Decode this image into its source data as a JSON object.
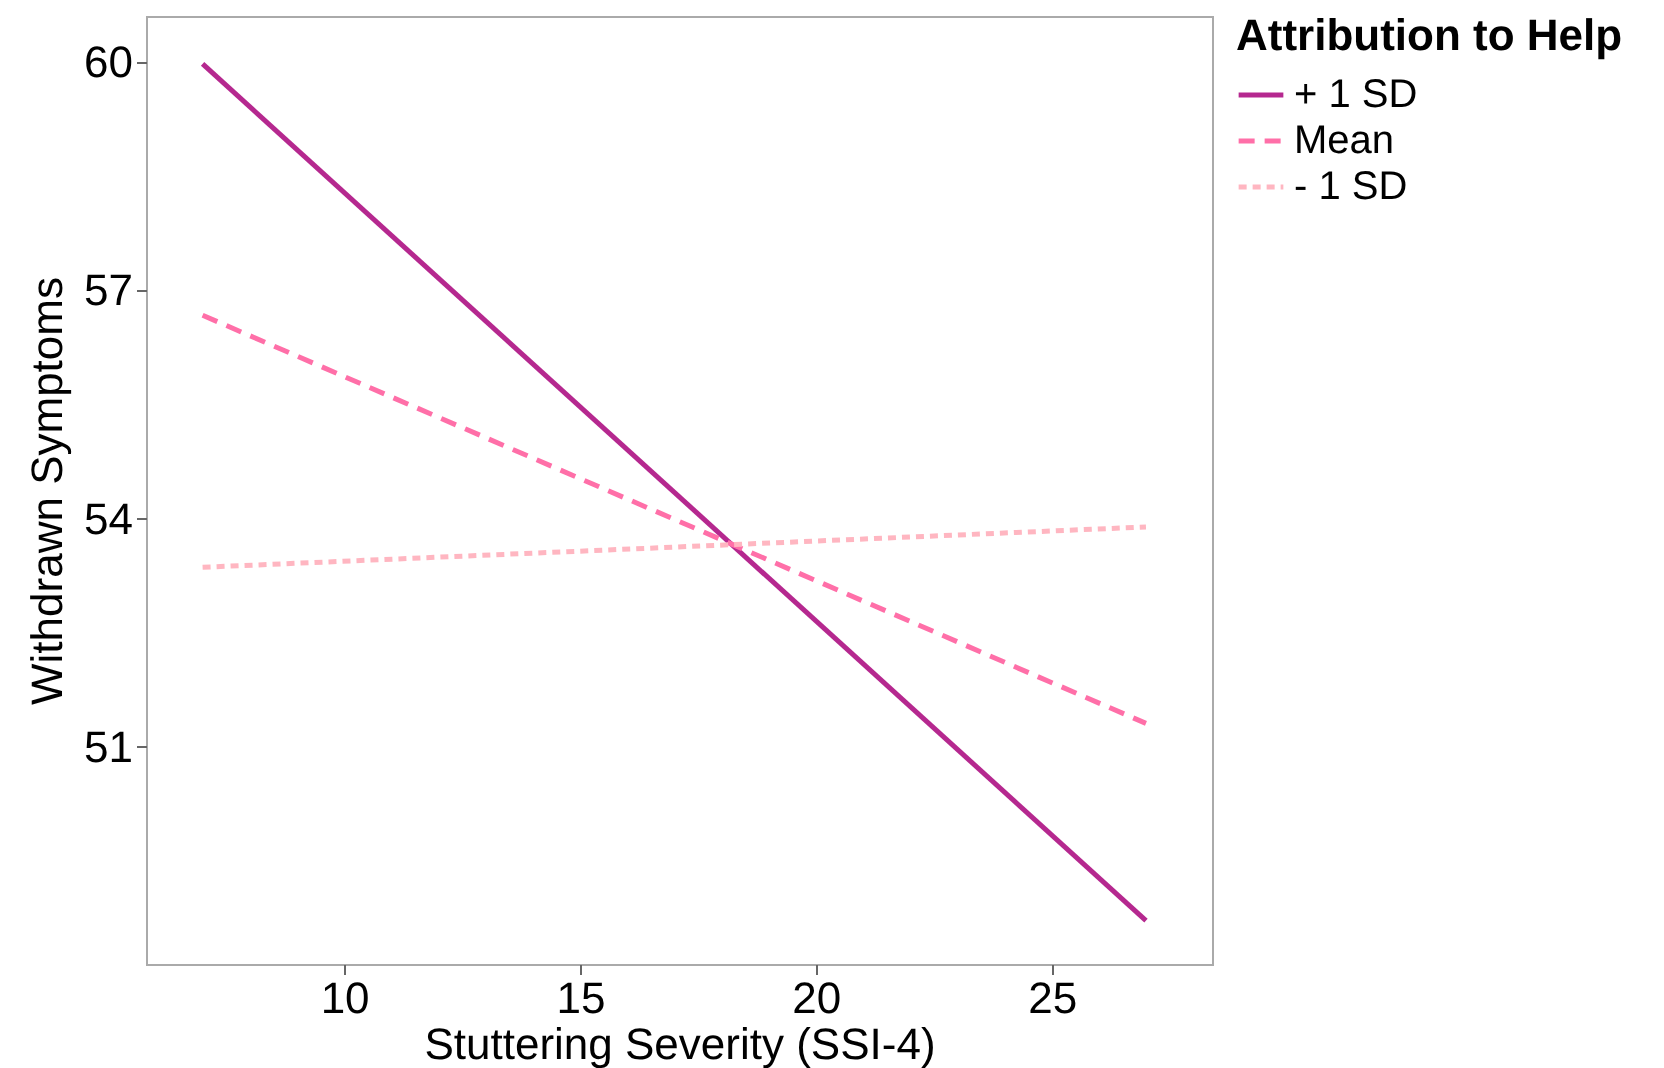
{
  "chart_data": {
    "type": "line",
    "xlabel": "Stuttering Severity (SSI-4)",
    "ylabel": "Withdrawn Symptoms",
    "legend_title": "Attribution to Help",
    "legend": "right",
    "grid": false,
    "x": [
      7,
      27
    ],
    "xlim": [
      5.8,
      28.4
    ],
    "xticks": [
      10,
      15,
      20,
      25
    ],
    "ylim": [
      48.15,
      60.6
    ],
    "yticks": [
      51,
      54,
      57,
      60
    ],
    "series": [
      {
        "name": "+ 1 SD",
        "color": "#b5288f",
        "line_style": "solid",
        "values": [
          59.97,
          48.72
        ]
      },
      {
        "name": "Mean",
        "color": "#ff6fa8",
        "line_style": "dashed",
        "values": [
          56.67,
          51.31
        ]
      },
      {
        "name": "- 1 SD",
        "color": "#ffb6c1",
        "line_style": "dotted",
        "values": [
          53.36,
          53.89
        ]
      }
    ]
  }
}
